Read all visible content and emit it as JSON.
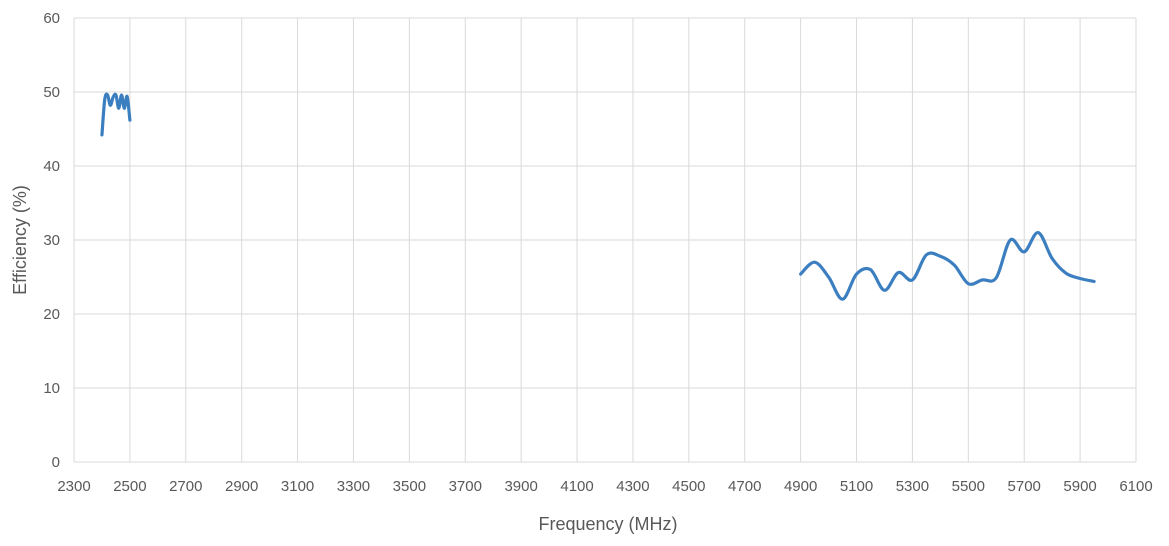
{
  "chart_data": {
    "type": "line",
    "title": "",
    "xlabel": "Frequency (MHz)",
    "ylabel": "Efficiency (%)",
    "xlim": [
      2300,
      6100
    ],
    "ylim": [
      0,
      60
    ],
    "xticks": [
      2300,
      2500,
      2700,
      2900,
      3100,
      3300,
      3500,
      3700,
      3900,
      4100,
      4300,
      4500,
      4700,
      4900,
      5100,
      5300,
      5500,
      5700,
      5900,
      6100
    ],
    "yticks": [
      0,
      10,
      20,
      30,
      40,
      50,
      60
    ],
    "grid": true,
    "legend": "none",
    "color": "#3c7fc0",
    "series": [
      {
        "segments": [
          {
            "x": [
              2400,
              2410,
              2420,
              2430,
              2440,
              2450,
              2460,
              2470,
              2480,
              2490,
              2500
            ],
            "y": [
              44.2,
              49.0,
              49.6,
              48.2,
              49.3,
              49.6,
              47.8,
              49.6,
              47.8,
              49.4,
              46.2
            ]
          },
          {
            "x": [
              4900,
              4950,
              5000,
              5050,
              5100,
              5150,
              5200,
              5250,
              5300,
              5350,
              5400,
              5450,
              5500,
              5550,
              5600,
              5650,
              5700,
              5750,
              5800,
              5850,
              5900,
              5950
            ],
            "y": [
              25.4,
              27.0,
              25.0,
              22.0,
              25.4,
              26.0,
              23.2,
              25.6,
              24.6,
              28.0,
              27.8,
              26.6,
              24.1,
              24.6,
              24.9,
              30.0,
              28.4,
              31.0,
              27.5,
              25.5,
              24.8,
              24.4
            ]
          }
        ]
      }
    ]
  }
}
